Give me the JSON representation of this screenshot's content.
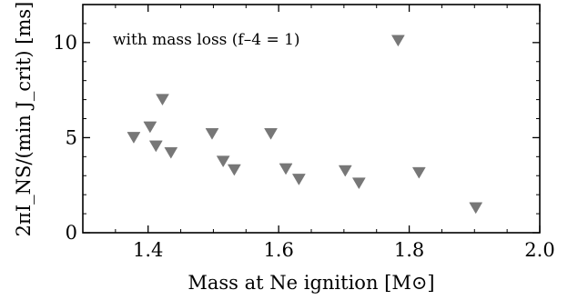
{
  "chart_data": {
    "type": "scatter",
    "marker": "triangle-down",
    "marker_color": "#777777",
    "xlabel": "Mass at Ne ignition [M⊙]",
    "ylabel": "2πI_NS/(min J_crit) [ms]",
    "annotation": "with mass loss (f–4 = 1)",
    "xlim": [
      1.3,
      2.0
    ],
    "ylim": [
      0,
      12
    ],
    "xticks": [
      1.4,
      1.6,
      1.8,
      2.0
    ],
    "xtick_labels": [
      "1.4",
      "1.6",
      "1.8",
      "2.0"
    ],
    "yticks": [
      0,
      5,
      10
    ],
    "ytick_labels": [
      "0",
      "5",
      "10"
    ],
    "grid": false,
    "series": [
      {
        "points": [
          [
            1.378,
            5.0
          ],
          [
            1.403,
            5.55
          ],
          [
            1.412,
            4.55
          ],
          [
            1.422,
            7.0
          ],
          [
            1.435,
            4.2
          ],
          [
            1.498,
            5.2
          ],
          [
            1.515,
            3.75
          ],
          [
            1.532,
            3.3
          ],
          [
            1.588,
            5.2
          ],
          [
            1.611,
            3.35
          ],
          [
            1.631,
            2.8
          ],
          [
            1.702,
            3.25
          ],
          [
            1.723,
            2.6
          ],
          [
            1.783,
            10.1
          ],
          [
            1.815,
            3.15
          ],
          [
            1.902,
            1.3
          ]
        ]
      }
    ]
  }
}
